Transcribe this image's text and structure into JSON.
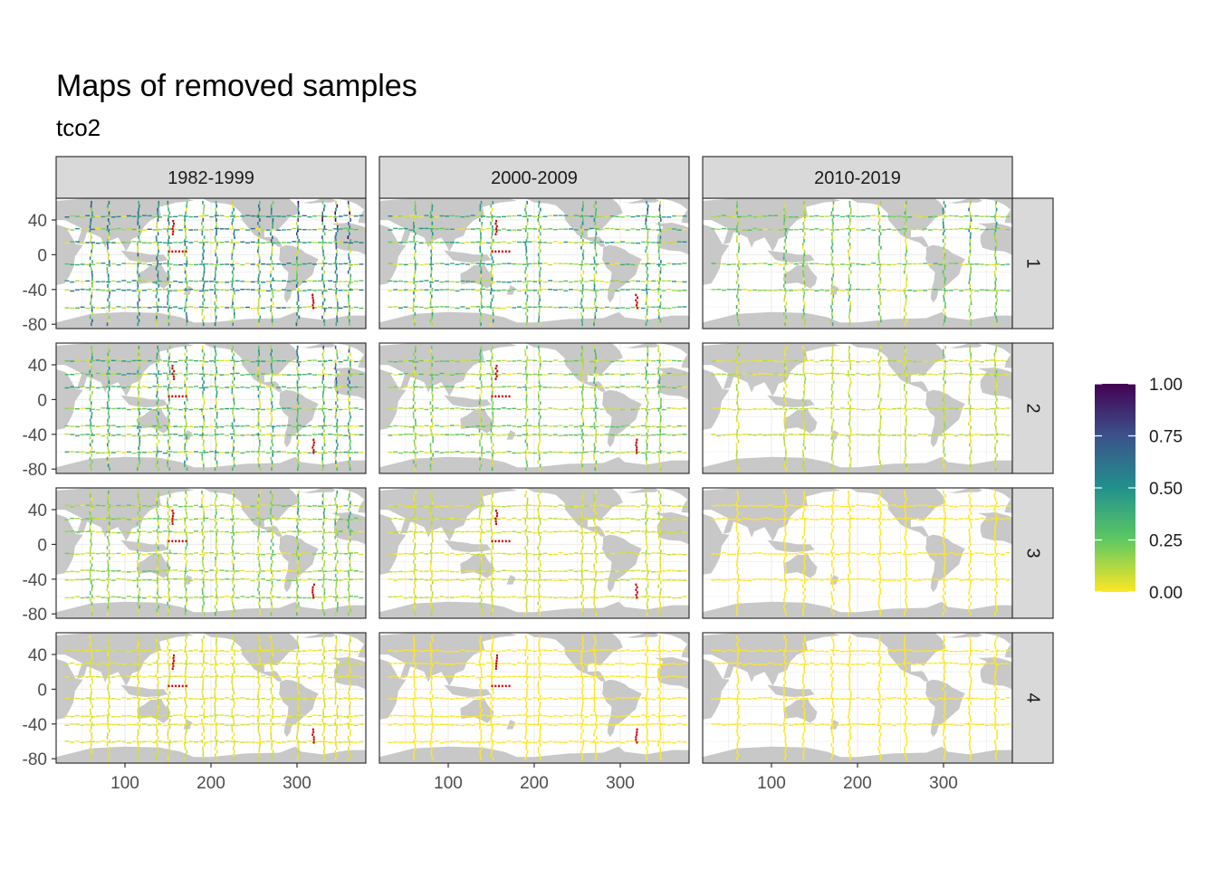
{
  "title": "Maps of removed samples",
  "subtitle": "tco2",
  "chart_data": {
    "type": "faceted-map",
    "columns": [
      "1982-1999",
      "2000-2009",
      "2010-2019"
    ],
    "rows": [
      "1",
      "2",
      "3",
      "4"
    ],
    "x_ticks": [
      "100",
      "200",
      "300"
    ],
    "x_tick_values": [
      100,
      200,
      300
    ],
    "xlim": [
      20,
      380
    ],
    "y_ticks": [
      "40",
      "0",
      "-40",
      "-80"
    ],
    "y_tick_values": [
      40,
      0,
      -40,
      -80
    ],
    "ylim": [
      -85,
      65
    ],
    "legend": {
      "labels": [
        "1.00",
        "0.75",
        "0.50",
        "0.25",
        "0.00"
      ],
      "values": [
        1.0,
        0.75,
        0.5,
        0.25,
        0.0
      ],
      "colors": [
        "#440154",
        "#3b528b",
        "#21918c",
        "#5ec962",
        "#fde725"
      ],
      "placement": "right"
    },
    "colors": {
      "land": "#c8c8c8",
      "strip": "#d9d9d9",
      "grid": "#ebebeb",
      "high_removal": "#cc0000"
    }
  }
}
